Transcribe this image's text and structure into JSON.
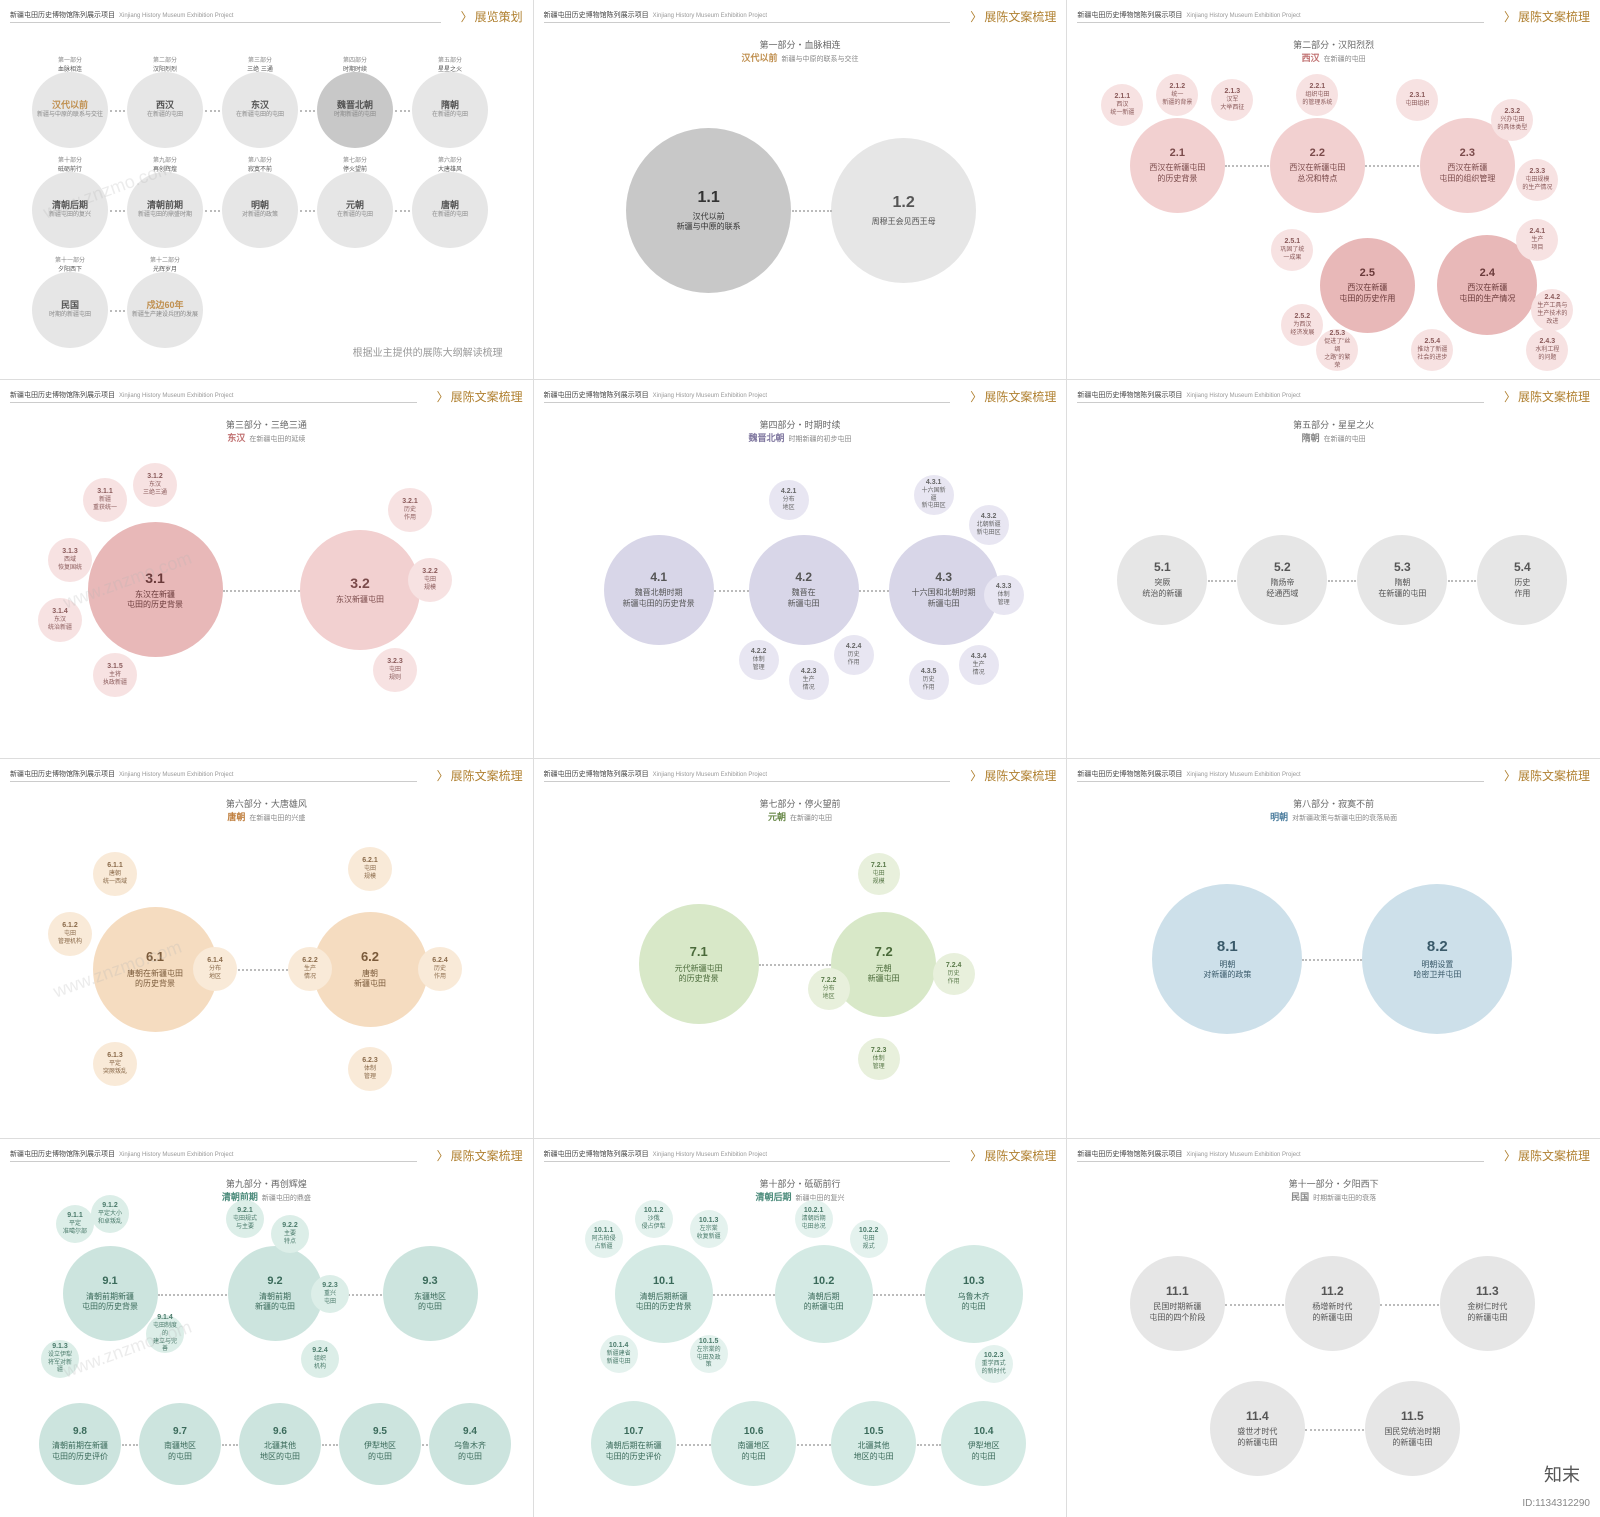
{
  "project": {
    "cn": "新疆屯田历史博物馆陈列展示项目",
    "en": "Xinjiang History Museum Exhibition Project"
  },
  "titles": {
    "plan": "展览策划",
    "copy": "展陈文案梳理"
  },
  "watermark": "www.znzmo.com",
  "footer_id": "ID:1134312290",
  "logo": "知末",
  "p1": {
    "note": "根据业主提供的展陈大纲解读梳理",
    "rows": [
      [
        {
          "top": "第一部分",
          "mid": "血脉相连",
          "big": "汉代以前",
          "small": "新疆与中原的联系与交往"
        },
        {
          "top": "第二部分",
          "mid": "汉阳烈烈",
          "big": "西汉",
          "small": "在新疆的屯田"
        },
        {
          "top": "第三部分",
          "mid": "三绝 三通",
          "big": "东汉",
          "small": "在新疆屯田的屯田"
        },
        {
          "top": "第四部分",
          "mid": "时期时续",
          "big": "魏晋北朝",
          "small": "时期新疆的屯田"
        },
        {
          "top": "第五部分",
          "mid": "星星之火",
          "big": "隋朝",
          "small": "在新疆的屯田"
        }
      ],
      [
        {
          "top": "第十部分",
          "mid": "砥砺前行",
          "big": "清朝后期",
          "small": "新疆屯田的复兴"
        },
        {
          "top": "第九部分",
          "mid": "再创辉煌",
          "big": "清朝前期",
          "small": "新疆屯田的鼎盛时期"
        },
        {
          "top": "第八部分",
          "mid": "寂寞不前",
          "big": "明朝",
          "small": "对新疆的政策"
        },
        {
          "top": "第七部分",
          "mid": "停火望前",
          "big": "元朝",
          "small": "在新疆的屯田"
        },
        {
          "top": "第六部分",
          "mid": "大唐雄风",
          "big": "唐朝",
          "small": "在新疆的屯田"
        }
      ],
      [
        {
          "top": "第十一部分",
          "mid": "夕阳西下",
          "big": "民国",
          "small": "时期的新疆屯田"
        },
        {
          "top": "第十二部分",
          "mid": "光辉岁月",
          "big": "戍边60年",
          "small": "新疆生产建设兵团的发展"
        }
      ]
    ]
  },
  "p2": {
    "part": "第一部分・血脉相连",
    "hl": "汉代以前",
    "hlcolor": "#c09050",
    "desc": "新疆与中原的联系与交往",
    "nodes": [
      {
        "n": "1.1",
        "t": "汉代以前\n新疆与中原的联系"
      },
      {
        "n": "1.2",
        "t": "周穆王会见西王母"
      }
    ]
  },
  "p3": {
    "part": "第二部分・汉阳烈烈",
    "hl": "西汉",
    "hlcolor": "#c07070",
    "desc": "在新疆的屯田",
    "main": [
      {
        "n": "2.1",
        "t": "西汉在新疆屯田\n的历史背景"
      },
      {
        "n": "2.2",
        "t": "西汉在新疆屯田\n总况和特点"
      },
      {
        "n": "2.3",
        "t": "西汉在新疆\n屯田的组织管理"
      },
      {
        "n": "2.5",
        "t": "西汉在新疆\n屯田的历史作用"
      },
      {
        "n": "2.4",
        "t": "西汉在新疆\n屯田的生产情况"
      }
    ],
    "sat": [
      [
        "2.1.1",
        "西汉\n统一新疆"
      ],
      [
        "2.1.2",
        "统一\n新疆的背景"
      ],
      [
        "2.1.3",
        "汉军\n大举西征"
      ],
      [
        "2.2.1",
        "组织屯田\n的管理系统"
      ],
      [
        "2.3.1",
        "屯田组织"
      ],
      [
        "2.3.2",
        "兴办屯田\n的具体类型"
      ],
      [
        "2.3.3",
        "屯田规模\n的生产情况"
      ],
      [
        "2.4.1",
        "生产\n项目"
      ],
      [
        "2.4.2",
        "生产工具与\n生产技术的改进"
      ],
      [
        "2.4.3",
        "水利工程\n的问题"
      ],
      [
        "2.5.1",
        "巩固了统\n一成果"
      ],
      [
        "2.5.2",
        "为西汉\n经济发展"
      ],
      [
        "2.5.3",
        "促进了\"丝绸\n之路\"的繁荣"
      ],
      [
        "2.5.4",
        "推动了新疆\n社会的进步"
      ]
    ]
  },
  "p4": {
    "part": "第三部分・三绝三通",
    "hl": "东汉",
    "hlcolor": "#c07070",
    "desc": "在新疆屯田的延续",
    "main": [
      {
        "n": "3.1",
        "t": "东汉在新疆\n屯田的历史背景"
      },
      {
        "n": "3.2",
        "t": "东汉新疆屯田"
      }
    ],
    "sat": [
      [
        "3.1.1",
        "新疆\n重获统一"
      ],
      [
        "3.1.2",
        "东汉\n三绝三通"
      ],
      [
        "3.1.3",
        "西域\n恢复国统"
      ],
      [
        "3.1.4",
        "东汉\n统治新疆"
      ],
      [
        "3.1.5",
        "主将\n执政新疆"
      ],
      [
        "3.2.1",
        "历史\n作用"
      ],
      [
        "3.2.2",
        "屯田\n规模"
      ],
      [
        "3.2.3",
        "屯田\n规则"
      ]
    ]
  },
  "p5": {
    "part": "第四部分・时期时续",
    "hl": "魏晋北朝",
    "hlcolor": "#8078a0",
    "desc": "时期新疆的初步屯田",
    "main": [
      {
        "n": "4.1",
        "t": "魏晋北朝时期\n新疆屯田的历史背景"
      },
      {
        "n": "4.2",
        "t": "魏晋在\n新疆屯田"
      },
      {
        "n": "4.3",
        "t": "十六国和北朝时期\n新疆屯田"
      }
    ],
    "sat": [
      [
        "4.2.1",
        "分布\n地区"
      ],
      [
        "4.2.2",
        "体制\n管理"
      ],
      [
        "4.2.3",
        "生产\n情况"
      ],
      [
        "4.2.4",
        "历史\n作用"
      ],
      [
        "4.3.1",
        "十六国新疆\n新屯田区"
      ],
      [
        "4.3.2",
        "北朝新疆\n新屯田区"
      ],
      [
        "4.3.3",
        "体制\n管理"
      ],
      [
        "4.3.4",
        "生产\n情况"
      ],
      [
        "4.3.5",
        "历史\n作用"
      ]
    ]
  },
  "p6": {
    "part": "第五部分・星星之火",
    "hl": "隋朝",
    "hlcolor": "#888",
    "desc": "在新疆的屯田",
    "main": [
      {
        "n": "5.1",
        "t": "突厥\n统治的新疆"
      },
      {
        "n": "5.2",
        "t": "隋炀帝\n经通西域"
      },
      {
        "n": "5.3",
        "t": "隋朝\n在新疆的屯田"
      },
      {
        "n": "5.4",
        "t": "历史\n作用"
      }
    ]
  },
  "p7": {
    "part": "第六部分・大唐雄风",
    "hl": "唐朝",
    "hlcolor": "#c08040",
    "desc": "在新疆屯田的兴盛",
    "main": [
      {
        "n": "6.1",
        "t": "唐朝在新疆屯田\n的历史背景"
      },
      {
        "n": "6.2",
        "t": "唐朝\n新疆屯田"
      }
    ],
    "sat": [
      [
        "6.1.1",
        "唐朝\n统一西域"
      ],
      [
        "6.1.2",
        "屯田\n管理机构"
      ],
      [
        "6.1.3",
        "平定\n突厥叛乱"
      ],
      [
        "6.1.4",
        "分布\n地区"
      ],
      [
        "6.2.1",
        "屯田\n规模"
      ],
      [
        "6.2.2",
        "生产\n情况"
      ],
      [
        "6.2.3",
        "体制\n管理"
      ],
      [
        "6.2.4",
        "历史\n作用"
      ]
    ]
  },
  "p8": {
    "part": "第七部分・停火望前",
    "hl": "元朝",
    "hlcolor": "#6a8a4a",
    "desc": "在新疆的屯田",
    "main": [
      {
        "n": "7.1",
        "t": "元代新疆屯田\n的历史背景"
      },
      {
        "n": "7.2",
        "t": "元朝\n新疆屯田"
      }
    ],
    "sat": [
      [
        "7.2.1",
        "屯田\n规模"
      ],
      [
        "7.2.2",
        "分布\n地区"
      ],
      [
        "7.2.3",
        "体制\n管理"
      ],
      [
        "7.2.4",
        "历史\n作用"
      ]
    ]
  },
  "p9": {
    "part": "第八部分・寂寞不前",
    "hl": "明朝",
    "hlcolor": "#5080a0",
    "desc": "对新疆政策与新疆屯田的衰落局面",
    "main": [
      {
        "n": "8.1",
        "t": "明朝\n对新疆的政策"
      },
      {
        "n": "8.2",
        "t": "明朝设置\n哈密卫并屯田"
      }
    ]
  },
  "p10": {
    "part": "第九部分・再创辉煌",
    "hl": "清朝前期",
    "hlcolor": "#4a8a7a",
    "desc": "新疆屯田的鼎盛",
    "top": [
      {
        "n": "9.1",
        "t": "清朝前期新疆\n屯田的历史背景"
      },
      {
        "n": "9.2",
        "t": "清朝前期\n新疆的屯田"
      },
      {
        "n": "9.3",
        "t": "东疆地区\n的屯田"
      }
    ],
    "bot": [
      {
        "n": "9.8",
        "t": "清朝前期在新疆\n屯田的历史评价"
      },
      {
        "n": "9.7",
        "t": "南疆地区\n的屯田"
      },
      {
        "n": "9.6",
        "t": "北疆其他\n地区的屯田"
      },
      {
        "n": "9.5",
        "t": "伊犁地区\n的屯田"
      },
      {
        "n": "9.4",
        "t": "乌鲁木齐\n的屯田"
      }
    ],
    "sat": [
      [
        "9.1.1",
        "平定\n准噶尔部"
      ],
      [
        "9.1.2",
        "平定大小\n和卓叛乱"
      ],
      [
        "9.1.3",
        "设立伊犁\n将军对新疆"
      ],
      [
        "9.1.4",
        "屯田制度的\n建立与完善"
      ],
      [
        "9.2.1",
        "屯田规式\n与主要"
      ],
      [
        "9.2.2",
        "主要\n特点"
      ],
      [
        "9.2.3",
        "重兴\n屯田"
      ],
      [
        "9.2.4",
        "组织\n机构"
      ]
    ]
  },
  "p11": {
    "part": "第十部分・砥砺前行",
    "hl": "清朝后期",
    "hlcolor": "#4a8a7a",
    "desc": "新疆屯田的复兴",
    "top": [
      {
        "n": "10.1",
        "t": "清朝后期新疆\n屯田的历史背景"
      },
      {
        "n": "10.2",
        "t": "清朝后期\n的新疆屯田"
      },
      {
        "n": "10.3",
        "t": "乌鲁木齐\n的屯田"
      }
    ],
    "bot": [
      {
        "n": "10.7",
        "t": "清朝后期在新疆\n屯田的历史评价"
      },
      {
        "n": "10.6",
        "t": "南疆地区\n的屯田"
      },
      {
        "n": "10.5",
        "t": "北疆其他\n地区的屯田"
      },
      {
        "n": "10.4",
        "t": "伊犁地区\n的屯田"
      }
    ],
    "sat": [
      [
        "10.1.1",
        "阿古柏侵\n占新疆"
      ],
      [
        "10.1.2",
        "沙俄\n侵占伊犁"
      ],
      [
        "10.1.3",
        "左宗棠\n收复新疆"
      ],
      [
        "10.1.4",
        "新疆建省\n新疆屯田"
      ],
      [
        "10.1.5",
        "左宗棠的\n屯田及政策"
      ],
      [
        "10.2.1",
        "清朝后期\n屯田总况"
      ],
      [
        "10.2.2",
        "屯田\n规式"
      ],
      [
        "10.2.3",
        "重学西式\n的新时代"
      ]
    ]
  },
  "p12": {
    "part": "第十一部分・夕阳西下",
    "hl": "民国",
    "hlcolor": "#888",
    "desc": "时期新疆屯田的衰落",
    "main": [
      {
        "n": "11.1",
        "t": "民国时期新疆\n屯田的四个阶段"
      },
      {
        "n": "11.2",
        "t": "杨增新时代\n的新疆屯田"
      },
      {
        "n": "11.3",
        "t": "金树仁时代\n的新疆屯田"
      },
      {
        "n": "11.4",
        "t": "盛世才时代\n的新疆屯田"
      },
      {
        "n": "11.5",
        "t": "国民党统治时期\n的新疆屯田"
      }
    ]
  }
}
